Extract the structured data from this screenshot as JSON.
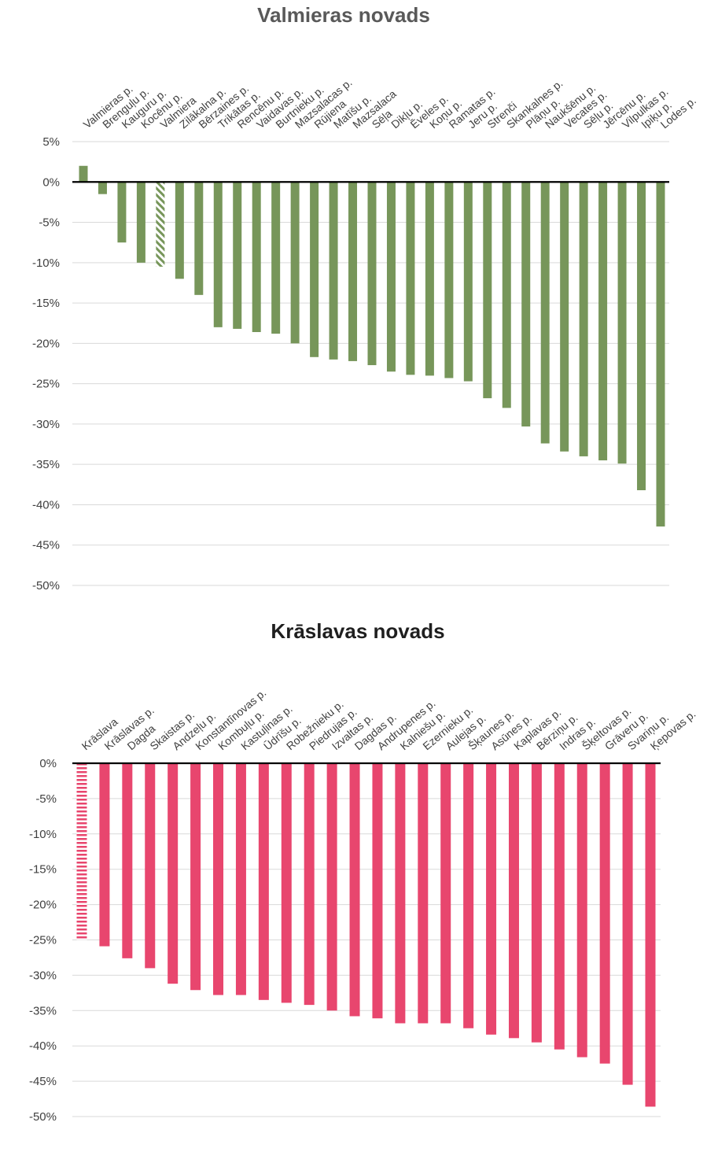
{
  "chart_data": [
    {
      "type": "bar",
      "title": "Valmieras novads",
      "color": "#77965a",
      "title_color": "#595959",
      "categories": [
        "Valmieras p.",
        "Brenguļu p.",
        "Kauguru p.",
        "Kocēnu p.",
        "Valmiera",
        "Zilākalna p.",
        "Bērzaines p.",
        "Trikātas p.",
        "Rencēnu p.",
        "Vaidavas p.",
        "Burtnieku p.",
        "Mazsalacas p.",
        "Rūjiena",
        "Matīšu p.",
        "Mazsalaca",
        "Sēļa",
        "Dikļu p.",
        "Ēveles p.",
        "Koņu p.",
        "Ramatas p.",
        "Jeru p.",
        "Strenči",
        "Skankalnes p.",
        "Plāņu p.",
        "Naukšēnu p.",
        "Vecates p.",
        "Sēļu p.",
        "Jērcēnu p.",
        "Vilpulkas p.",
        "Ipiķu p.",
        "Lodes p."
      ],
      "values": [
        2,
        -1.5,
        -7.5,
        -10,
        -10.5,
        -12,
        -14,
        -18,
        -18.2,
        -18.6,
        -18.8,
        -20,
        -21.7,
        -22,
        -22.2,
        -22.7,
        -23.5,
        -23.9,
        -24,
        -24.3,
        -24.7,
        -26.8,
        -28,
        -30.3,
        -32.4,
        -33.4,
        -34,
        -34.5,
        -34.9,
        -38.2,
        -42.7
      ],
      "hatched_index": 4,
      "ytick_labels": [
        "5%",
        "0%",
        "-5%",
        "-10%",
        "-15%",
        "-20%",
        "-25%",
        "-30%",
        "-35%",
        "-40%",
        "-45%",
        "-50%"
      ],
      "ylim": [
        -50,
        5
      ],
      "grid": true
    },
    {
      "type": "bar",
      "title": "Krāslavas novads",
      "color": "#e8466e",
      "title_color": "#1f1f1f",
      "categories": [
        "Krāslava",
        "Krāslavas p.",
        "Dagda",
        "Skaistas p.",
        "Andzeļu p.",
        "Konstantīnovas p.",
        "Kombuļu p.",
        "Kastuļinas p.",
        "Ūdrīšu p.",
        "Robežnieku p.",
        "Piedrujas p.",
        "Izvaltas p.",
        "Dagdas p.",
        "Andrupenes p.",
        "Kalniešu p.",
        "Ezernieku p.",
        "Aulejas p.",
        "Šķaunes p.",
        "Asūnes p.",
        "Kaplavas p.",
        "Bērziņu p.",
        "Indras p.",
        "Šķeltovas p.",
        "Grāveru p.",
        "Svariņu p.",
        "Ķepovas p."
      ],
      "values": [
        -25,
        -25.9,
        -27.6,
        -29,
        -31.2,
        -32.1,
        -32.8,
        -32.8,
        -33.5,
        -33.9,
        -34.2,
        -35,
        -35.8,
        -36.1,
        -36.8,
        -36.8,
        -36.8,
        -37.5,
        -38.4,
        -38.9,
        -39.5,
        -40.5,
        -41.6,
        -42.5,
        -45.5,
        -48.6
      ],
      "hatched_index": 0,
      "ytick_labels": [
        "0%",
        "-5%",
        "-10%",
        "-15%",
        "-20%",
        "-25%",
        "-30%",
        "-35%",
        "-40%",
        "-45%",
        "-50%"
      ],
      "ylim": [
        -50,
        0
      ],
      "grid": true
    }
  ]
}
